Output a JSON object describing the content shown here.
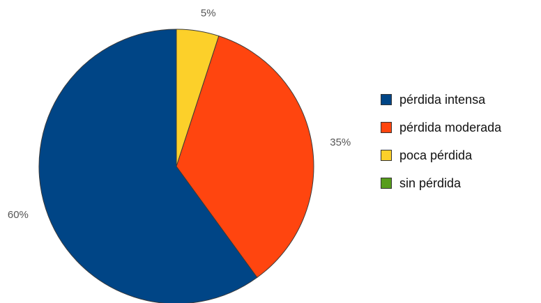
{
  "chart_data": {
    "type": "pie",
    "title": "",
    "slices": [
      {
        "name": "poca pérdida",
        "value": 5,
        "label": "5%",
        "color": "#fcd02a"
      },
      {
        "name": "pérdida moderada",
        "value": 35,
        "label": "35%",
        "color": "#ff450f"
      },
      {
        "name": "pérdida intensa",
        "value": 60,
        "label": "60%",
        "color": "#004586"
      },
      {
        "name": "sin pérdida",
        "value": 0,
        "label": "",
        "color": "#579d1c"
      }
    ],
    "legend": {
      "placement": "right",
      "entries": [
        {
          "label": "pérdida intensa",
          "color": "#004586"
        },
        {
          "label": "pérdida moderada",
          "color": "#ff450f"
        },
        {
          "label": "poca pérdida",
          "color": "#fcd02a"
        },
        {
          "label": "sin pérdida",
          "color": "#579d1c"
        }
      ]
    }
  }
}
